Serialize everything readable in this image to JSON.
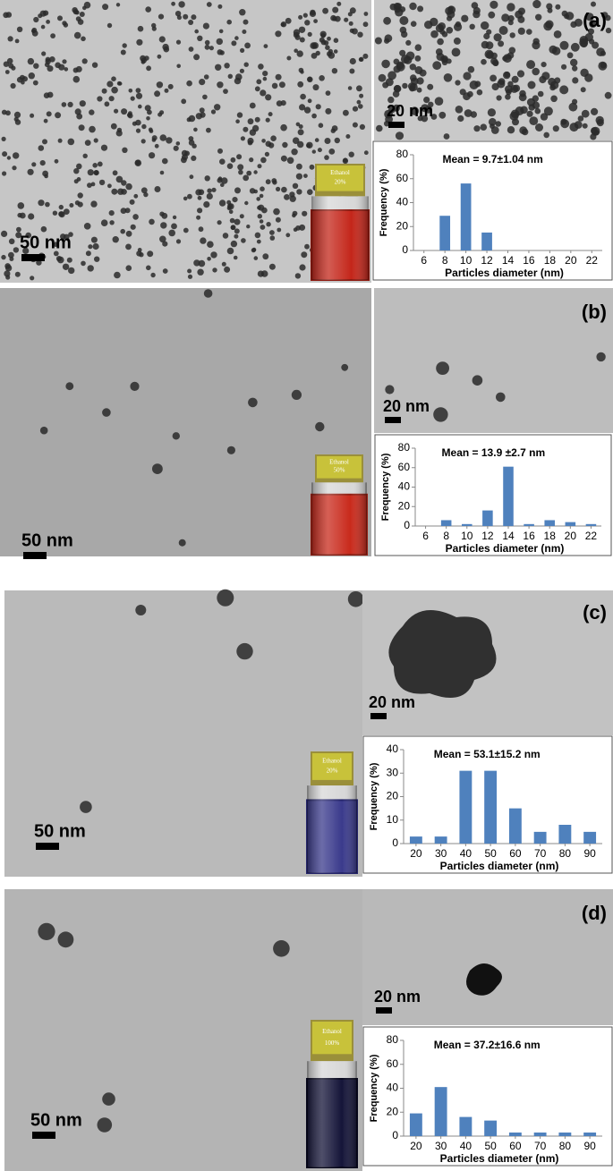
{
  "chart_data": [
    {
      "type": "bar",
      "title": "Mean = 9.7±1.04 nm",
      "x_label": "Particles diameter (nm)",
      "y_label": "Frequency (%)",
      "x": [
        6,
        8,
        10,
        12,
        14,
        16,
        18,
        20,
        22
      ],
      "values": [
        0,
        29,
        56,
        15,
        0,
        0,
        0,
        0,
        0
      ],
      "color": "#4f81bd",
      "xlim": [
        5,
        23
      ],
      "xticks": [
        6,
        8,
        10,
        12,
        14,
        16,
        18,
        20,
        22
      ],
      "ylim": [
        0,
        80
      ],
      "yticks": [
        0,
        20,
        40,
        60,
        80
      ]
    },
    {
      "type": "bar",
      "title": "Mean = 13.9 ±2.7 nm",
      "x_label": "Particles diameter (nm)",
      "y_label": "Frequency (%)",
      "x": [
        6,
        8,
        10,
        12,
        14,
        16,
        18,
        20,
        22
      ],
      "values": [
        0,
        6,
        2,
        16,
        61,
        2,
        6,
        4,
        2
      ],
      "color": "#4f81bd",
      "xlim": [
        5,
        23
      ],
      "xticks": [
        6,
        8,
        10,
        12,
        14,
        16,
        18,
        20,
        22
      ],
      "ylim": [
        0,
        80
      ],
      "yticks": [
        0,
        20,
        40,
        60,
        80
      ]
    },
    {
      "type": "bar",
      "title": "Mean = 53.1±15.2 nm",
      "x_label": "Particles diameter (nm)",
      "y_label": "Frequency (%)",
      "x": [
        20,
        30,
        40,
        50,
        60,
        70,
        80,
        90
      ],
      "values": [
        3,
        3,
        31,
        31,
        15,
        5,
        8,
        5
      ],
      "color": "#4f81bd",
      "xlim": [
        15,
        95
      ],
      "xticks": [
        20,
        30,
        40,
        50,
        60,
        70,
        80,
        90
      ],
      "ylim": [
        0,
        40
      ],
      "yticks": [
        0,
        10,
        20,
        30,
        40
      ]
    },
    {
      "type": "bar",
      "title": "Mean = 37.2±16.6 nm",
      "x_label": "Particles diameter (nm)",
      "y_label": "Frequency (%)",
      "x": [
        20,
        30,
        40,
        50,
        60,
        70,
        80,
        90
      ],
      "values": [
        19,
        41,
        16,
        13,
        3,
        3,
        3,
        3
      ],
      "color": "#4f81bd",
      "xlim": [
        15,
        95
      ],
      "xticks": [
        20,
        30,
        40,
        50,
        60,
        70,
        80,
        90
      ],
      "ylim": [
        0,
        80
      ],
      "yticks": [
        0,
        20,
        40,
        60,
        80
      ]
    }
  ],
  "panels": [
    {
      "label": "(a)",
      "scale_large": "50 nm",
      "scale_small": "20 nm",
      "vial": [
        "Ethanol",
        "20%"
      ]
    },
    {
      "label": "(b)",
      "scale_large": "50 nm",
      "scale_small": "20 nm",
      "vial": [
        "Ethanol",
        "50%"
      ]
    },
    {
      "label": "(c)",
      "scale_large": "50 nm",
      "scale_small": "20 nm",
      "vial": [
        "Ethanol",
        "20%"
      ]
    },
    {
      "label": "(d)",
      "scale_large": "50 nm",
      "scale_small": "20 nm",
      "vial": [
        "Ethanol",
        "100%"
      ]
    }
  ]
}
